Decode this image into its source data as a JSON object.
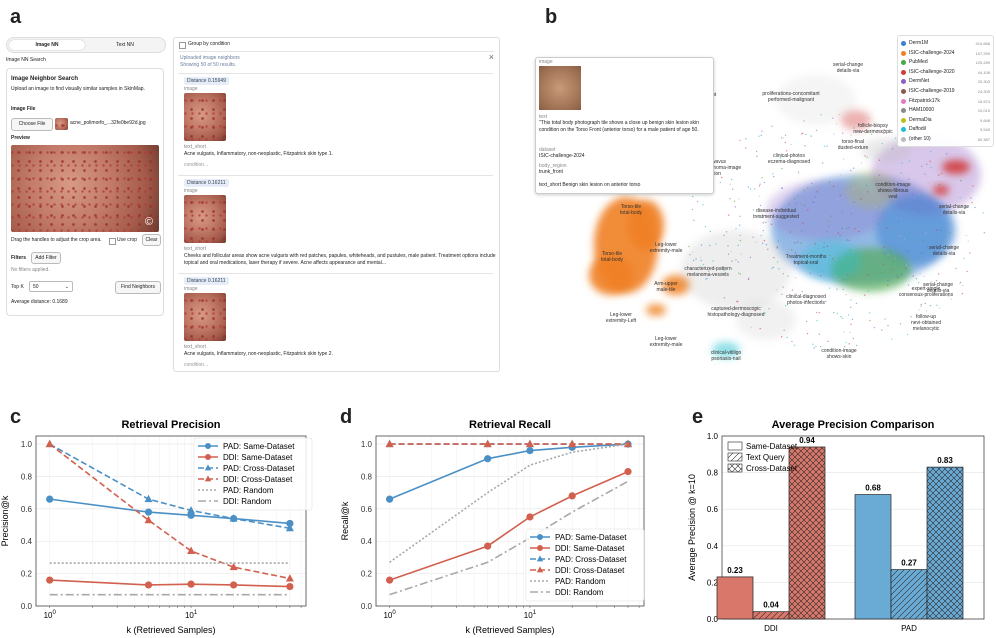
{
  "panel_labels": {
    "a": "a",
    "b": "b",
    "c": "c",
    "d": "d",
    "e": "e"
  },
  "panel_a": {
    "tabs": {
      "image": "Image NN",
      "text": "Text NN"
    },
    "section_title": "Image NN Search",
    "card_title": "Image Neighbor Search",
    "description": "Upload an image to find visually similar samples in SkinMap.",
    "image_file_label": "Image File",
    "choose_file": "Choose File",
    "file_name": "acne_polimorfo_...32fe0be92d.jpg",
    "preview_label": "Preview",
    "copyright_symbol": "©",
    "crop_hint": "Drag the handles to adjust the crop area.",
    "use_crop": "Use crop",
    "clear": "Clear",
    "filters_label": "Filters",
    "add_filter": "Add Filter",
    "no_filters": "No filters applied.",
    "topk_label": "Top K",
    "topk_value": "50",
    "find_neighbors": "Find Neighbors",
    "avg_distance": "Average distance: 0.1689",
    "group_by": "Group by condition",
    "uploaded_title": "Uploaded image neighbors",
    "showing": "Showing 50 of 50 results.",
    "close_icon": "×",
    "results": [
      {
        "distance": "Distance 0.15949",
        "image_label": "image",
        "text_label": "text_short",
        "text": "Acne vulgaris, Inflammatory, non-neoplastic, Fitzpatrick skin type 1.",
        "condition": "condition..."
      },
      {
        "distance": "Distance 0.16211",
        "image_label": "image",
        "text_label": "text_short",
        "text": "Cheeks and follicular areas show acne vulgaris with red patches, papules, whiteheads, and pustules, male patient. Treatment options include topical and oral medications, laser therapy if severe. Acne affects appearance and mental...",
        "condition": ""
      },
      {
        "distance": "Distance 0.16211",
        "image_label": "image",
        "text_label": "text_short",
        "text": "Acne vulgaris, Inflammatory, non-neoplastic, Fitzpatrick skin type 2.",
        "condition": "condition..."
      }
    ]
  },
  "panel_b": {
    "popup": {
      "image_label": "image",
      "text_label": "text",
      "text": "\"This total body photograph tile shows a close up benign skin lesion skin condition on the Torso Front (anterior torso) for a male patient of age 50.",
      "dataset_label": "dataset",
      "dataset": "ISIC-challenge-2024",
      "body_label": "body_region",
      "body": "trunk_front",
      "text_short": "text_short  Benign skin lesion on anterior torso"
    },
    "legend": [
      {
        "name": "Derm1M",
        "count": "410,668",
        "color": "#3a7fd0"
      },
      {
        "name": "ISIC-challenge-2024",
        "count": "107,259",
        "color": "#f07f22"
      },
      {
        "name": "PubMed",
        "count": "120,289",
        "color": "#48a844"
      },
      {
        "name": "ISIC-challenge-2020",
        "count": "44,108",
        "color": "#d33b3b"
      },
      {
        "name": "DermNet",
        "count": "20,303",
        "color": "#8e5fc2"
      },
      {
        "name": "ISIC-challenge-2019",
        "count": "24,309",
        "color": "#8a5a4a"
      },
      {
        "name": "Fitzpatrick17k",
        "count": "16,574",
        "color": "#e07bc4"
      },
      {
        "name": "HAM10000",
        "count": "10,015",
        "color": "#8a8a8a"
      },
      {
        "name": "DermaDia",
        "count": "9,848",
        "color": "#bdbd22"
      },
      {
        "name": "Daffodil",
        "count": "9,545",
        "color": "#1ebfd0"
      },
      {
        "name": "(other 10)",
        "count": "60,387",
        "color": "#bbbbbb"
      }
    ],
    "cluster_labels": [
      "serial-change-details-via",
      "proliferations-concomitant-performed-malignant",
      "image-treatment",
      "follicle-biopsy-new-dermoscopic",
      "torso-final-dusted-exture",
      "clinical-photos-eczema-diagnosed",
      "condition-image-shows-fibrous-vest",
      "serial-change-details-via",
      "typical-wavus-malignantmelanoma-image-condition",
      "disease-individual-treatment-suggested",
      "Torso-tile-total-body",
      "Torso-tile-total-body",
      "Leg-lower-extremity-male",
      "characterized-pattern-melanoma-vessels",
      "Treatment-months-topical-oral",
      "serial-change-details-via",
      "expert-single-consensus-proliferations",
      "serial-change-details-via",
      "Arm-upper-male-tile",
      "clinical-diagnosed-photos-infections",
      "Leg-lower-extremity-Left",
      "captured-dermoscopic-histopathology-diagnosed",
      "follow-up-nevi-obtained-melanocytic",
      "Leg-lower-extremity-male",
      "clinical-vitiligo-psoriasis-nail",
      "condition-image-shows-skin"
    ]
  },
  "panel_c": {
    "chart_data": {
      "type": "line",
      "title": "Retrieval Precision",
      "xlabel": "k (Retrieved Samples)",
      "ylabel": "Precision@k",
      "xscale": "log",
      "x": [
        1,
        5,
        10,
        20,
        50
      ],
      "xlim": [
        0.8,
        65
      ],
      "ylim": [
        0,
        1.05
      ],
      "yticks": [
        "0.0",
        "0.2",
        "0.4",
        "0.6",
        "0.8",
        "1.0"
      ],
      "xticks": [
        {
          "v": 1,
          "base": "10",
          "exp": "0"
        },
        {
          "v": 10,
          "base": "10",
          "exp": "1"
        }
      ],
      "series": [
        {
          "name": "PAD: Same-Dataset",
          "color": "#4a90c6",
          "dash": "",
          "marker": "circle",
          "values": [
            0.66,
            0.58,
            0.56,
            0.54,
            0.51
          ]
        },
        {
          "name": "DDI: Same-Dataset",
          "color": "#d2604f",
          "dash": "",
          "marker": "circle",
          "values": [
            0.16,
            0.13,
            0.135,
            0.13,
            0.12
          ]
        },
        {
          "name": "PAD: Cross-Dataset",
          "color": "#4a90c6",
          "dash": "6,3",
          "marker": "triangle",
          "values": [
            1.0,
            0.66,
            0.59,
            0.54,
            0.48
          ]
        },
        {
          "name": "DDI: Cross-Dataset",
          "color": "#d2604f",
          "dash": "6,3",
          "marker": "triangle",
          "values": [
            1.0,
            0.53,
            0.34,
            0.24,
            0.17
          ]
        },
        {
          "name": "PAD: Random",
          "color": "#a8a8a8",
          "dash": "2,2",
          "marker": "none",
          "values": [
            0.265,
            0.265,
            0.265,
            0.265,
            0.265
          ]
        },
        {
          "name": "DDI: Random",
          "color": "#a8a8a8",
          "dash": "8,3,2,3",
          "marker": "none",
          "values": [
            0.07,
            0.07,
            0.07,
            0.07,
            0.07
          ]
        }
      ]
    }
  },
  "panel_d": {
    "chart_data": {
      "type": "line",
      "title": "Retrieval Recall",
      "xlabel": "k (Retrieved Samples)",
      "ylabel": "Recall@k",
      "xscale": "log",
      "x": [
        1,
        5,
        10,
        20,
        50
      ],
      "xlim": [
        0.8,
        65
      ],
      "ylim": [
        0,
        1.05
      ],
      "yticks": [
        "0.0",
        "0.2",
        "0.4",
        "0.6",
        "0.8",
        "1.0"
      ],
      "xticks": [
        {
          "v": 1,
          "base": "10",
          "exp": "0"
        },
        {
          "v": 10,
          "base": "10",
          "exp": "1"
        }
      ],
      "series": [
        {
          "name": "PAD: Same-Dataset",
          "color": "#4a90c6",
          "dash": "",
          "marker": "circle",
          "values": [
            0.66,
            0.91,
            0.96,
            0.98,
            1.0
          ]
        },
        {
          "name": "DDI: Same-Dataset",
          "color": "#d2604f",
          "dash": "",
          "marker": "circle",
          "values": [
            0.16,
            0.37,
            0.55,
            0.68,
            0.83
          ]
        },
        {
          "name": "PAD: Cross-Dataset",
          "color": "#4a90c6",
          "dash": "6,3",
          "marker": "triangle",
          "values": [
            1.0,
            1.0,
            1.0,
            1.0,
            1.0
          ]
        },
        {
          "name": "DDI: Cross-Dataset",
          "color": "#d2604f",
          "dash": "6,3",
          "marker": "triangle",
          "values": [
            1.0,
            1.0,
            1.0,
            1.0,
            1.0
          ]
        },
        {
          "name": "PAD: Random",
          "color": "#a8a8a8",
          "dash": "2,2",
          "marker": "none",
          "values": [
            0.27,
            0.7,
            0.87,
            0.95,
            1.0
          ]
        },
        {
          "name": "DDI: Random",
          "color": "#a8a8a8",
          "dash": "8,3,2,3",
          "marker": "none",
          "values": [
            0.07,
            0.27,
            0.42,
            0.58,
            0.77
          ]
        }
      ]
    }
  },
  "panel_e": {
    "chart_data": {
      "type": "bar",
      "title": "Average Precision Comparison",
      "ylabel": "Average Precision @ k=10",
      "categories": [
        "DDI",
        "PAD"
      ],
      "ylim": [
        0,
        1.0
      ],
      "yticks": [
        "0.0",
        "0.2",
        "0.4",
        "0.6",
        "0.8",
        "1.0"
      ],
      "series": [
        {
          "name": "Same-Dataset",
          "hatch": "none",
          "values": [
            0.23,
            0.68
          ],
          "labels": [
            "0.23",
            "0.68"
          ]
        },
        {
          "name": "Text Query",
          "hatch": "diag",
          "values": [
            0.04,
            0.27
          ],
          "labels": [
            "0.04",
            "0.27"
          ]
        },
        {
          "name": "Cross-Dataset",
          "hatch": "cross",
          "values": [
            0.94,
            0.83
          ],
          "labels": [
            "0.94",
            "0.83"
          ]
        }
      ],
      "colors": {
        "DDI": "#d9776a",
        "PAD": "#6aabd6"
      }
    }
  }
}
